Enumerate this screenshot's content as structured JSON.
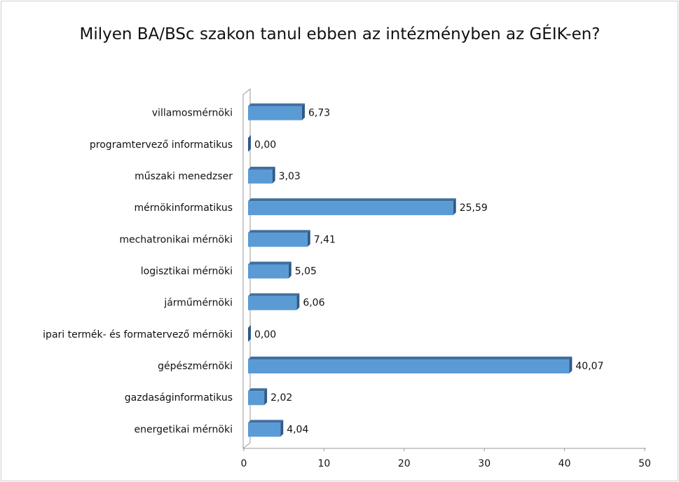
{
  "chart_data": {
    "type": "bar",
    "orientation": "horizontal",
    "title": "Milyen BA/BSc szakon tanul ebben az intézményben az GÉIK-en?",
    "categories": [
      "villamosmérnöki",
      "programtervező informatikus",
      "műszaki menedzser",
      "mérnökinformatikus",
      "mechatronikai mérnöki",
      "logisztikai mérnöki",
      "járműmérnöki",
      "ipari termék- és formatervező mérnöki",
      "gépészmérnöki",
      "gazdaságinformatikus",
      "energetikai mérnöki"
    ],
    "values": [
      6.73,
      0.0,
      3.03,
      25.59,
      7.41,
      5.05,
      6.06,
      0.0,
      40.07,
      2.02,
      4.04
    ],
    "value_labels": [
      "6,73",
      "0,00",
      "3,03",
      "25,59",
      "7,41",
      "5,05",
      "6,06",
      "0,00",
      "40,07",
      "2,02",
      "4,04"
    ],
    "color": "#5b9bd5",
    "xlim": [
      0,
      50
    ],
    "xticks": [
      0,
      10,
      20,
      30,
      40,
      50
    ],
    "grid": false
  }
}
